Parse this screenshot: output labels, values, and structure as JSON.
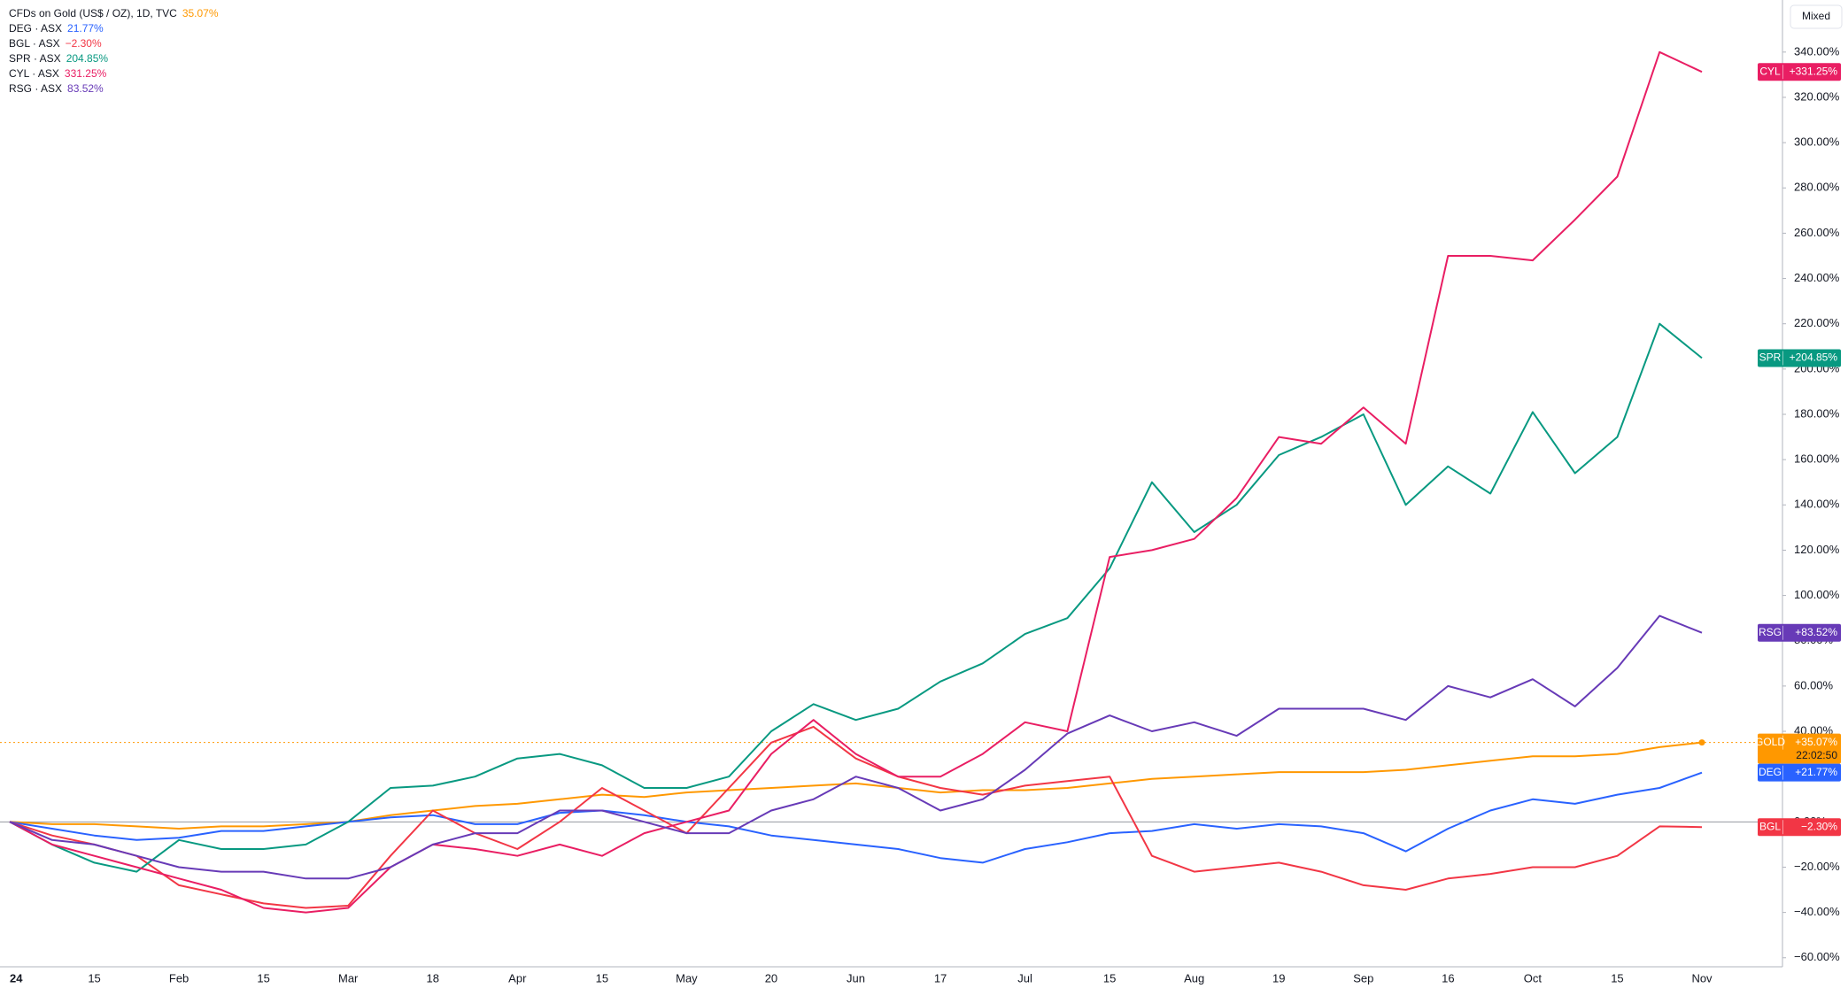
{
  "chart_data": {
    "type": "line",
    "categories": [
      "24",
      null,
      "15",
      null,
      "Feb",
      null,
      "15",
      null,
      "Mar",
      null,
      "18",
      null,
      "Apr",
      null,
      "15",
      null,
      "May",
      null,
      "20",
      null,
      "Jun",
      null,
      "17",
      null,
      "Jul",
      null,
      "15",
      null,
      "Aug",
      null,
      "19",
      null,
      "Sep",
      null,
      "16",
      null,
      "Oct",
      null,
      "15",
      null,
      "Nov"
    ],
    "ylim": [
      -64,
      363
    ],
    "yticks": [
      {
        "value": -60,
        "label": "−60.00%"
      },
      {
        "value": -40,
        "label": "−40.00%"
      },
      {
        "value": -20,
        "label": "−20.00%"
      },
      {
        "value": 0,
        "label": "0.00%"
      },
      {
        "value": 20,
        "label": "20.00%"
      },
      {
        "value": 40,
        "label": "40.00%"
      },
      {
        "value": 60,
        "label": "60.00%"
      },
      {
        "value": 80,
        "label": "80.00%"
      },
      {
        "value": 100,
        "label": "100.00%"
      },
      {
        "value": 120,
        "label": "120.00%"
      },
      {
        "value": 140,
        "label": "140.00%"
      },
      {
        "value": 160,
        "label": "160.00%"
      },
      {
        "value": 180,
        "label": "180.00%"
      },
      {
        "value": 200,
        "label": "200.00%"
      },
      {
        "value": 220,
        "label": "220.00%"
      },
      {
        "value": 240,
        "label": "240.00%"
      },
      {
        "value": 260,
        "label": "260.00%"
      },
      {
        "value": 280,
        "label": "280.00%"
      },
      {
        "value": 300,
        "label": "300.00%"
      },
      {
        "value": 320,
        "label": "320.00%"
      },
      {
        "value": 340,
        "label": "340.00%"
      }
    ],
    "grid": false,
    "scale_mode": "Mixed",
    "series": [
      {
        "name": "CFDs on Gold (US$ / OZ), 1D, TVC",
        "tag": "GOLD",
        "legend_value": "35.07%",
        "tag_value": "+35.07%",
        "countdown": "22:02:50",
        "color": "#ff9800",
        "dotted_last": true,
        "values": [
          0,
          -1,
          -1,
          -2,
          -3,
          -2,
          -2,
          -1,
          0,
          3,
          5,
          7,
          8,
          10,
          12,
          11,
          13,
          14,
          15,
          16,
          17,
          15,
          13,
          14,
          14,
          15,
          17,
          19,
          20,
          21,
          22,
          22,
          22,
          23,
          25,
          27,
          29,
          29,
          30,
          33,
          35.07
        ]
      },
      {
        "name": "DEG · ASX",
        "tag": "DEG",
        "legend_value": "21.77%",
        "tag_value": "+21.77%",
        "color": "#2962ff",
        "values": [
          0,
          -3,
          -6,
          -8,
          -7,
          -4,
          -4,
          -2,
          0,
          2,
          3,
          -1,
          -1,
          4,
          5,
          3,
          0,
          -2,
          -6,
          -8,
          -10,
          -12,
          -16,
          -18,
          -12,
          -9,
          -5,
          -4,
          -1,
          -3,
          -1,
          -2,
          -5,
          -13,
          -3,
          5,
          10,
          8,
          12,
          15,
          21.77
        ]
      },
      {
        "name": "BGL · ASX",
        "tag": "BGL",
        "legend_value": "−2.30%",
        "tag_value": "−2.30%",
        "color": "#f23645",
        "values": [
          0,
          -6,
          -10,
          -15,
          -28,
          -32,
          -36,
          -38,
          -37,
          -15,
          5,
          -5,
          -12,
          0,
          15,
          5,
          -5,
          15,
          35,
          42,
          28,
          20,
          15,
          12,
          16,
          18,
          20,
          -15,
          -22,
          -20,
          -18,
          -22,
          -28,
          -30,
          -25,
          -23,
          -20,
          -20,
          -15,
          -2,
          -2.3
        ]
      },
      {
        "name": "SPR · ASX",
        "tag": "SPR",
        "legend_value": "204.85%",
        "tag_value": "+204.85%",
        "color": "#089981",
        "values": [
          0,
          -10,
          -18,
          -22,
          -8,
          -12,
          -12,
          -10,
          0,
          15,
          16,
          20,
          28,
          30,
          25,
          15,
          15,
          20,
          40,
          52,
          45,
          50,
          62,
          70,
          83,
          90,
          112,
          150,
          128,
          140,
          162,
          170,
          180,
          140,
          157,
          145,
          181,
          154,
          170,
          220,
          204.85
        ]
      },
      {
        "name": "CYL · ASX",
        "tag": "CYL",
        "legend_value": "331.25%",
        "tag_value": "+331.25%",
        "color": "#e91e63",
        "values": [
          0,
          -10,
          -15,
          -20,
          -25,
          -30,
          -38,
          -40,
          -38,
          -20,
          -10,
          -12,
          -15,
          -10,
          -15,
          -5,
          0,
          5,
          30,
          45,
          30,
          20,
          20,
          30,
          44,
          40,
          117,
          120,
          125,
          143,
          170,
          167,
          183,
          167,
          250,
          250,
          248,
          266,
          285,
          340,
          331.25
        ]
      },
      {
        "name": "RSG · ASX",
        "tag": "RSG",
        "legend_value": "83.52%",
        "tag_value": "+83.52%",
        "color": "#673ab7",
        "values": [
          0,
          -8,
          -10,
          -15,
          -20,
          -22,
          -22,
          -25,
          -25,
          -20,
          -10,
          -5,
          -5,
          5,
          5,
          0,
          -5,
          -5,
          5,
          10,
          20,
          15,
          5,
          10,
          23,
          39,
          47,
          40,
          44,
          38,
          50,
          50,
          50,
          45,
          60,
          55,
          63,
          51,
          68,
          91,
          83.52
        ]
      }
    ]
  }
}
